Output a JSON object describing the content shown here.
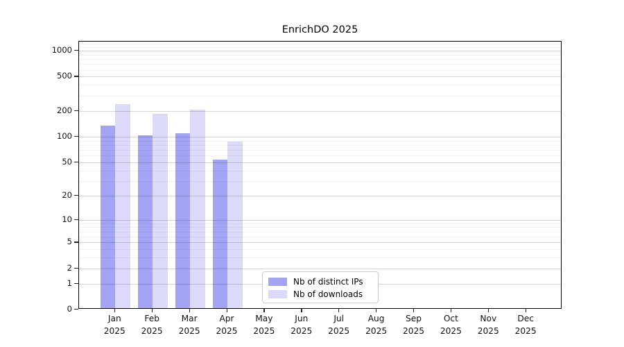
{
  "chart_data": {
    "type": "bar",
    "title": "EnrichDO 2025",
    "scale": "log1p",
    "categories": [
      "Jan",
      "Feb",
      "Mar",
      "Apr",
      "May",
      "Jun",
      "Jul",
      "Aug",
      "Sep",
      "Oct",
      "Nov",
      "Dec"
    ],
    "category_year": "2025",
    "series": [
      {
        "name": "Nb of distinct IPs",
        "color": "#a4a4f4",
        "values": [
          130,
          100,
          105,
          52,
          null,
          null,
          null,
          null,
          null,
          null,
          null,
          null
        ]
      },
      {
        "name": "Nb of downloads",
        "color": "#dbdbf9",
        "values": [
          230,
          178,
          200,
          85,
          null,
          null,
          null,
          null,
          null,
          null,
          null,
          null
        ]
      }
    ],
    "y_axis": {
      "ticks": [
        0,
        1,
        2,
        5,
        10,
        20,
        50,
        100,
        200,
        500,
        1000
      ],
      "minor_ticks": [
        3,
        4,
        6,
        7,
        8,
        9,
        30,
        40,
        60,
        70,
        80,
        90,
        300,
        400,
        600,
        700,
        800,
        900,
        1100,
        1200
      ],
      "top_value": 1270
    },
    "legend_position": "bottom-center",
    "grid": true
  },
  "colors": {
    "bar_ips": "#a4a4f4",
    "bar_downloads": "#dbdbf9",
    "grid_major": "#d6d6d6",
    "grid_minor": "#f2f2f2",
    "spine": "#000000",
    "legend_border": "#cccccc"
  }
}
